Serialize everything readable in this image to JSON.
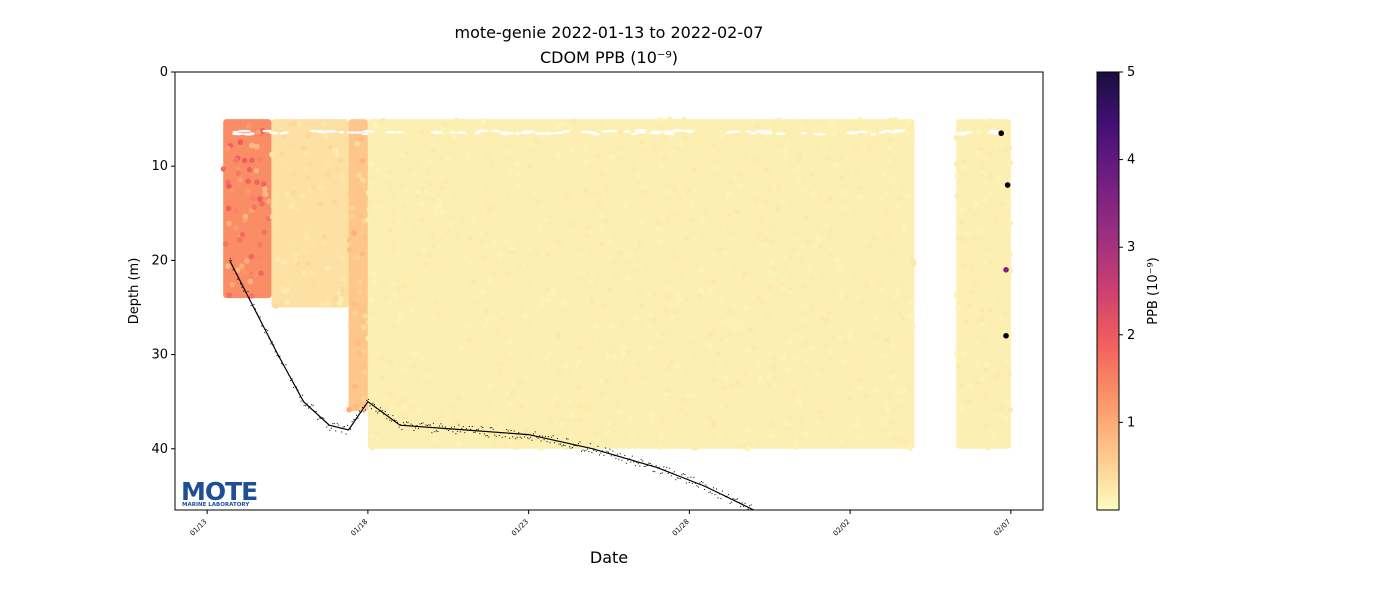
{
  "colors": {
    "logo_blue": "#1f4e96",
    "colormap": [
      "#fcfdbf",
      "#feca8d",
      "#fd9668",
      "#f1605d",
      "#cd4071",
      "#9e2f7f",
      "#721f81",
      "#440f76",
      "#180f3d",
      "#000004"
    ]
  },
  "logo": {
    "name": "MOTE",
    "subtitle": "MARINE LABORATORY"
  },
  "chart_data": {
    "type": "scatter",
    "title": "mote-genie 2022-01-13 to 2022-02-07",
    "subtitle": "CDOM PPB (10⁻⁹)",
    "xlabel": "Date",
    "ylabel": "Depth (m)",
    "x_ticks": [
      "01/13",
      "01/18",
      "01/23",
      "01/28",
      "02/02",
      "02/07"
    ],
    "y_ticks": [
      "0",
      "10",
      "20",
      "30",
      "40"
    ],
    "xlim": [
      "2022-01-12",
      "2022-02-08"
    ],
    "ylim": [
      46.5,
      0
    ],
    "y_inverted": true,
    "colorbar": {
      "label": "PPB (10⁻⁹)",
      "ticks": [
        "1",
        "2",
        "3",
        "4",
        "5"
      ],
      "range": [
        0,
        5
      ],
      "colormap": "magma_r"
    },
    "segments": [
      {
        "start": "2022-01-13.5",
        "end": "2022-01-15.0",
        "depth_top": 5,
        "depth_bottom": 24,
        "ppb": 1.2
      },
      {
        "start": "2022-01-15.0",
        "end": "2022-01-17.4",
        "depth_top": 5,
        "depth_bottom": 25,
        "ppb": 0.3
      },
      {
        "start": "2022-01-17.4",
        "end": "2022-01-18.0",
        "depth_top": 5,
        "depth_bottom": 36,
        "ppb": 0.6
      },
      {
        "start": "2022-01-18.0",
        "end": "2022-02-04.0",
        "depth_top": 5,
        "depth_bottom": 40,
        "ppb": 0.15
      },
      {
        "start": "2022-02-05.3",
        "end": "2022-02-07.0",
        "depth_top": 5,
        "depth_bottom": 40,
        "ppb": 0.15
      }
    ],
    "outliers": [
      {
        "date": "2022-02-06.7",
        "depth": 6.5,
        "ppb": 5
      },
      {
        "date": "2022-02-06.9",
        "depth": 12,
        "ppb": 5
      },
      {
        "date": "2022-02-06.85",
        "depth": 21,
        "ppb": 3.2
      },
      {
        "date": "2022-02-06.85",
        "depth": 28,
        "ppb": 5
      }
    ],
    "bottom_track": [
      {
        "date": "2022-01-13.7",
        "depth": 20
      },
      {
        "date": "2022-01-14.3",
        "depth": 24
      },
      {
        "date": "2022-01-15.2",
        "depth": 30
      },
      {
        "date": "2022-01-16.0",
        "depth": 35
      },
      {
        "date": "2022-01-16.8",
        "depth": 37.5
      },
      {
        "date": "2022-01-17.4",
        "depth": 38
      },
      {
        "date": "2022-01-18.0",
        "depth": 35
      },
      {
        "date": "2022-01-19.0",
        "depth": 37.5
      },
      {
        "date": "2022-01-21.0",
        "depth": 38
      },
      {
        "date": "2022-01-23.0",
        "depth": 38.5
      },
      {
        "date": "2022-01-25.0",
        "depth": 40
      },
      {
        "date": "2022-01-27.0",
        "depth": 42
      },
      {
        "date": "2022-01-28.5",
        "depth": 44
      },
      {
        "date": "2022-01-30.0",
        "depth": 46.5
      }
    ]
  }
}
